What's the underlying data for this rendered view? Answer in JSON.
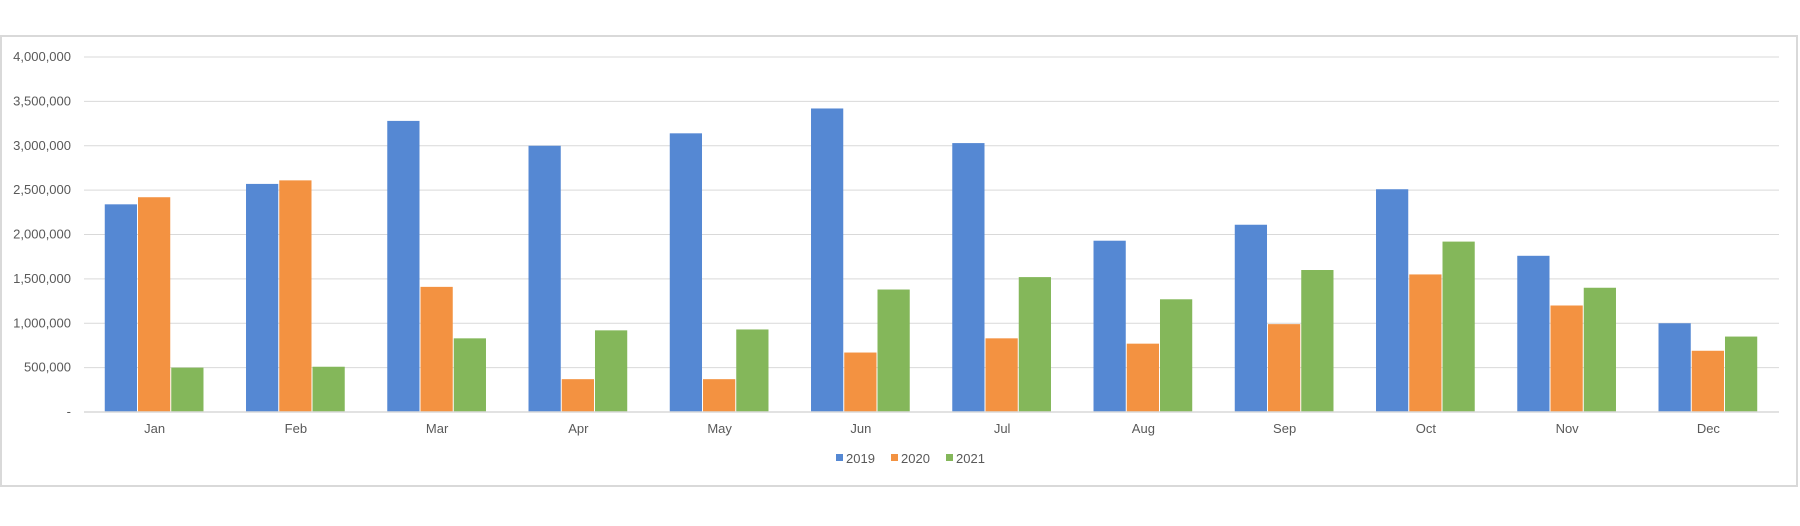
{
  "chart_data": {
    "type": "bar",
    "title": "",
    "xlabel": "",
    "ylabel": "",
    "categories": [
      "Jan",
      "Feb",
      "Mar",
      "Apr",
      "May",
      "Jun",
      "Jul",
      "Aug",
      "Sep",
      "Oct",
      "Nov",
      "Dec"
    ],
    "series": [
      {
        "name": "2019",
        "color": "#5588d3",
        "values": [
          2340000,
          2570000,
          3280000,
          3000000,
          3140000,
          3420000,
          3030000,
          1930000,
          2110000,
          2510000,
          1760000,
          1000000
        ]
      },
      {
        "name": "2020",
        "color": "#f39241",
        "values": [
          2420000,
          2610000,
          1410000,
          370000,
          370000,
          670000,
          830000,
          770000,
          990000,
          1550000,
          1200000,
          690000
        ]
      },
      {
        "name": "2021",
        "color": "#84b75a",
        "values": [
          500000,
          510000,
          830000,
          920000,
          930000,
          1380000,
          1520000,
          1270000,
          1600000,
          1920000,
          1400000,
          850000
        ]
      }
    ],
    "ylim": [
      0,
      4000000
    ],
    "y_ticks": [
      {
        "value": 0,
        "label": "-"
      },
      {
        "value": 500000,
        "label": "500,000"
      },
      {
        "value": 1000000,
        "label": "1,000,000"
      },
      {
        "value": 1500000,
        "label": "1,500,000"
      },
      {
        "value": 2000000,
        "label": "2,000,000"
      },
      {
        "value": 2500000,
        "label": "2,500,000"
      },
      {
        "value": 3000000,
        "label": "3,000,000"
      },
      {
        "value": 3500000,
        "label": "3,500,000"
      },
      {
        "value": 4000000,
        "label": "4,000,000"
      }
    ],
    "grid": true,
    "legend_position": "bottom",
    "gridline_color": "#d9d9d9",
    "axis_text_color": "#595959"
  }
}
